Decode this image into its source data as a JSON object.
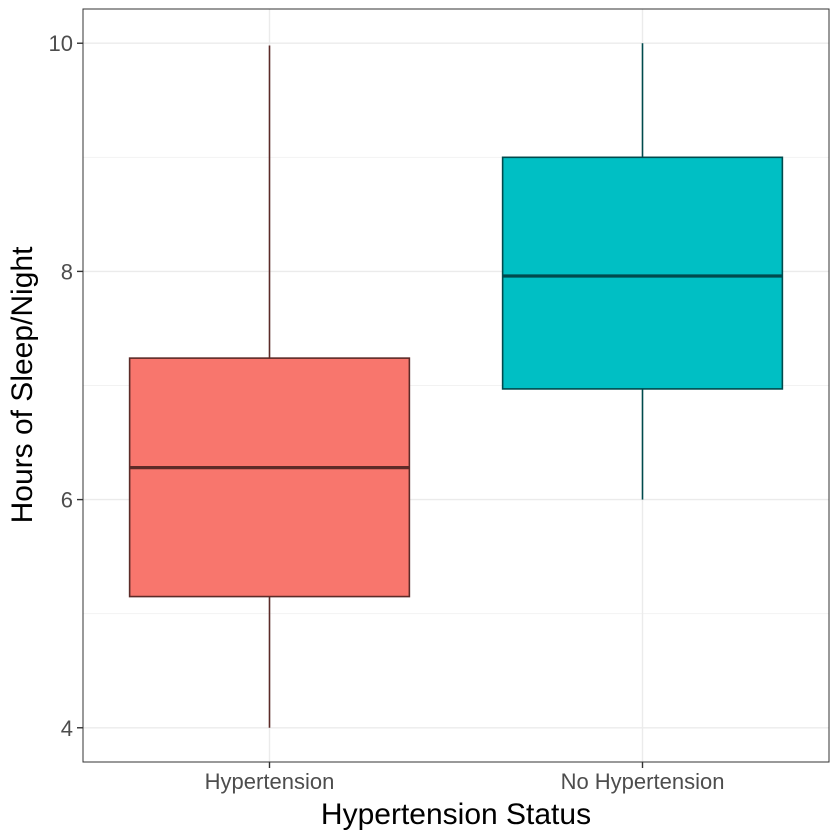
{
  "chart_data": {
    "type": "box",
    "xlabel": "Hypertension Status",
    "ylabel": "Hours of Sleep/Night",
    "ylim": [
      3.7,
      10.3
    ],
    "yticks": [
      4,
      6,
      8,
      10
    ],
    "yticks_labels": [
      "4",
      "6",
      "8",
      "10"
    ],
    "grid": true,
    "categories": [
      "Hypertension",
      "No Hypertension"
    ],
    "boxes": [
      {
        "category": "Hypertension",
        "min": 4.0,
        "q1": 5.15,
        "median": 6.28,
        "q3": 7.24,
        "max": 9.98,
        "fill": "#F8766D",
        "outline": "#5c2b28"
      },
      {
        "category": "No Hypertension",
        "min": 6.0,
        "q1": 6.97,
        "median": 7.96,
        "q3": 9.0,
        "max": 10.0,
        "fill": "#00BFC4",
        "outline": "#004a4d"
      }
    ]
  }
}
